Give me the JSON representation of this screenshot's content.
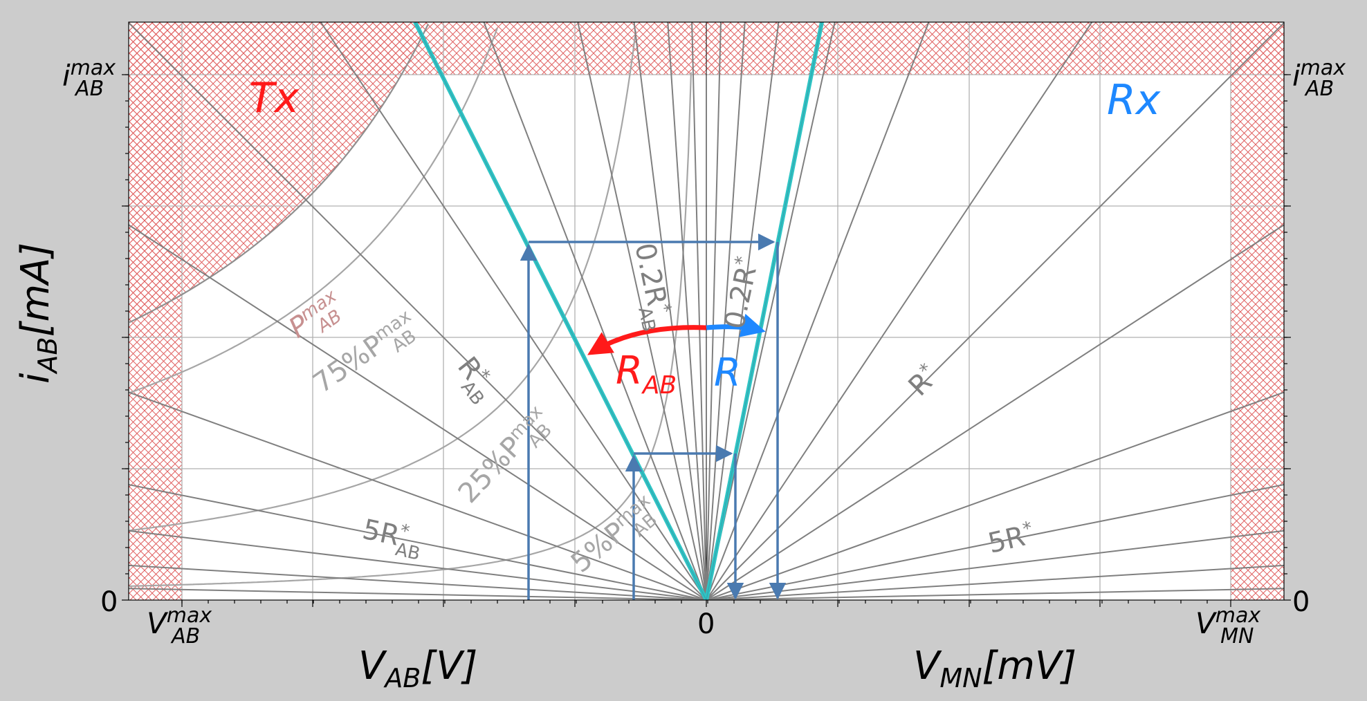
{
  "axes": {
    "y_label": "i",
    "y_label_sub": "AB",
    "y_label_unit": "[mA]",
    "x_left_label": "V",
    "x_left_label_sub": "AB",
    "x_left_label_unit": "[V]",
    "x_right_label": "V",
    "x_right_label_sub": "MN",
    "x_right_label_unit": "[mV]",
    "y_zero_left": "0",
    "y_zero_right": "0",
    "x_zero": "0",
    "imax_left": "i",
    "imax_left_sub": "AB",
    "imax_left_sup": "max",
    "imax_right": "i",
    "imax_right_sub": "AB",
    "imax_right_sup": "max",
    "vmax_left": "V",
    "vmax_left_sub": "AB",
    "vmax_left_sup": "max",
    "vmax_right": "V",
    "vmax_right_sub": "MN",
    "vmax_right_sup": "max"
  },
  "regions": {
    "tx_label": "Tx",
    "rx_label": "Rx"
  },
  "power_curves": {
    "pmax": "P",
    "pmax_sub": "AB",
    "pmax_sup": "max",
    "p75": "75%P",
    "p25": "25%P",
    "p5": "5%P",
    "sub": "AB",
    "sup": "max"
  },
  "resistance_labels": {
    "rab_star": "R",
    "rab_star_sub": "AB",
    "r_star": "R",
    "five_rab": "5R",
    "five_rab_sub": "AB",
    "five_r": "5R",
    "point2_rab": "0.2R",
    "point2_rab_sub": "AB",
    "point2_r": "0.2R",
    "star": "*"
  },
  "arrows": {
    "rab_label": "R",
    "rab_sub": "AB",
    "r_label": "R"
  },
  "colors": {
    "background": "#cccccc",
    "plot_bg": "#ffffff",
    "hatch": "#e06060",
    "line_gray": "#7f7f7f",
    "curve_gray": "#a6a6a6",
    "teal": "#2ec4c4",
    "steel_blue": "#4a7ab0",
    "red": "#ff1a1a",
    "blue": "#1e88ff"
  }
}
